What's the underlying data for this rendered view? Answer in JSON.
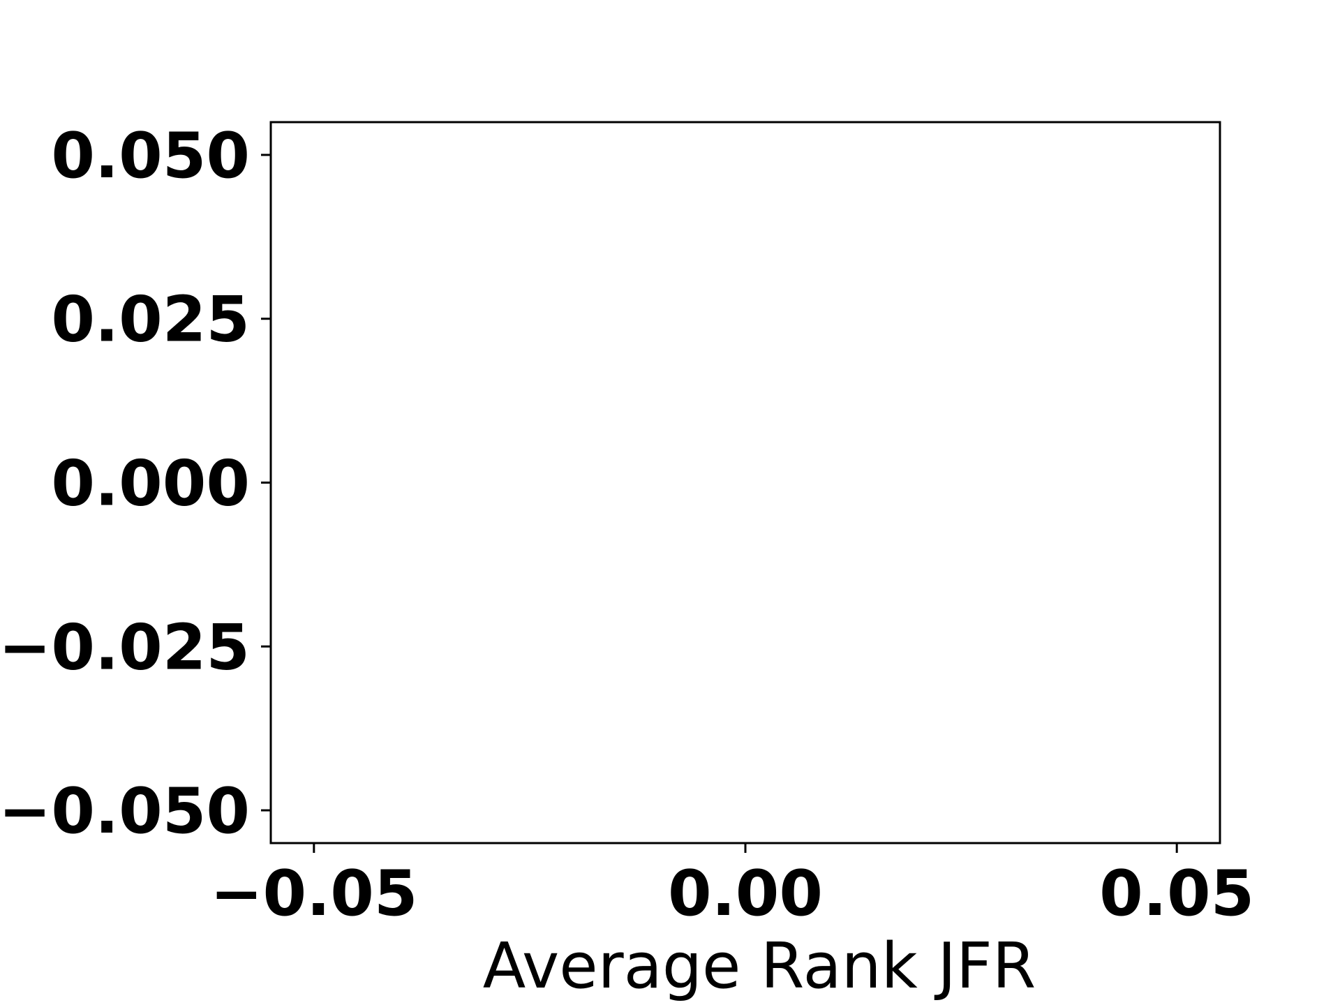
{
  "chart_data": {
    "type": "scatter",
    "title": "",
    "xlabel": "Average Rank JFR",
    "ylabel": "",
    "xlim": [
      -0.055,
      0.055
    ],
    "ylim": [
      -0.055,
      0.055
    ],
    "x_ticks": [
      -0.05,
      0.0,
      0.05
    ],
    "x_tick_labels": [
      "−0.05",
      "0.00",
      "0.05"
    ],
    "y_ticks": [
      0.05,
      0.025,
      0.0,
      -0.025,
      -0.05
    ],
    "y_tick_labels": [
      "0.050",
      "0.025",
      "0.000",
      "−0.025",
      "−0.050"
    ],
    "series": [],
    "grid": false,
    "colors": {
      "axis": "#000000",
      "background": "#ffffff"
    }
  }
}
